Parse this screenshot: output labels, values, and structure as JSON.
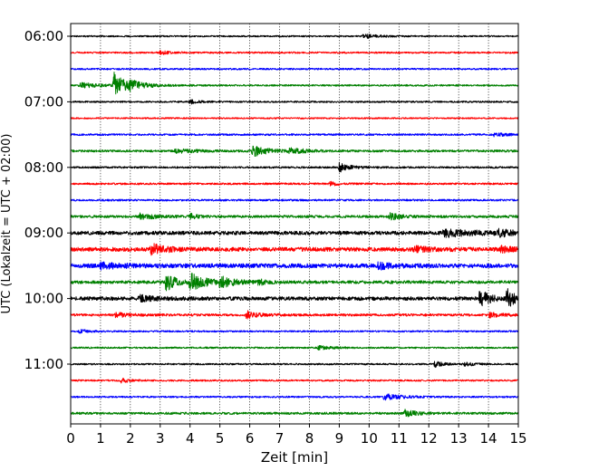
{
  "chart_data": {
    "type": "line",
    "xlabel": "Zeit  [min]",
    "ylabel": "UTC (Lokalzeit = UTC + 02:00)",
    "xlim": [
      0,
      15
    ],
    "xticks": [
      0,
      1,
      2,
      3,
      4,
      5,
      6,
      7,
      8,
      9,
      10,
      11,
      12,
      13,
      14,
      15
    ],
    "xtick_labels": [
      "0",
      "1",
      "2",
      "3",
      "4",
      "5",
      "6",
      "7",
      "8",
      "9",
      "10",
      "11",
      "12",
      "13",
      "14",
      "15"
    ],
    "ytick_labels": [
      "06:00",
      "07:00",
      "08:00",
      "09:00",
      "10:00",
      "11:00"
    ],
    "ytick_times": [
      "06:00",
      "07:00",
      "08:00",
      "09:00",
      "10:00",
      "11:00"
    ],
    "grid_x": true,
    "trace_interval_min": 15,
    "trace_colors": [
      "#000000",
      "#ff0000",
      "#0000ff",
      "#008000"
    ],
    "traces": [
      {
        "start": "06:00",
        "noise": 0.8,
        "events": [
          {
            "t": 9.8,
            "amp": 2.2,
            "dur": 0.5
          }
        ]
      },
      {
        "start": "06:15",
        "noise": 0.9,
        "events": [
          {
            "t": 3.0,
            "amp": 2.0,
            "dur": 0.3
          }
        ]
      },
      {
        "start": "06:30",
        "noise": 0.9,
        "events": []
      },
      {
        "start": "06:45",
        "noise": 0.9,
        "events": [
          {
            "t": 0.3,
            "amp": 3.0,
            "dur": 0.6
          },
          {
            "t": 1.45,
            "amp": 14.0,
            "dur": 0.35
          },
          {
            "t": 1.9,
            "amp": 4.0,
            "dur": 0.6
          }
        ]
      },
      {
        "start": "07:00",
        "noise": 0.9,
        "events": [
          {
            "t": 4.0,
            "amp": 2.0,
            "dur": 0.3
          }
        ]
      },
      {
        "start": "07:15",
        "noise": 0.8,
        "events": []
      },
      {
        "start": "07:30",
        "noise": 1.0,
        "events": [
          {
            "t": 14.2,
            "amp": 2.0,
            "dur": 0.4
          }
        ]
      },
      {
        "start": "07:45",
        "noise": 1.2,
        "events": [
          {
            "t": 3.5,
            "amp": 2.0,
            "dur": 0.6
          },
          {
            "t": 6.1,
            "amp": 6.0,
            "dur": 0.45
          },
          {
            "t": 7.3,
            "amp": 3.0,
            "dur": 0.5
          }
        ]
      },
      {
        "start": "08:00",
        "noise": 1.0,
        "events": [
          {
            "t": 9.0,
            "amp": 5.0,
            "dur": 0.35
          }
        ]
      },
      {
        "start": "08:15",
        "noise": 1.0,
        "events": [
          {
            "t": 8.7,
            "amp": 2.0,
            "dur": 0.3
          }
        ]
      },
      {
        "start": "08:30",
        "noise": 1.0,
        "events": []
      },
      {
        "start": "08:45",
        "noise": 1.4,
        "events": [
          {
            "t": 2.3,
            "amp": 3.0,
            "dur": 0.5
          },
          {
            "t": 4.0,
            "amp": 3.0,
            "dur": 0.2
          },
          {
            "t": 10.7,
            "amp": 3.5,
            "dur": 0.35
          }
        ]
      },
      {
        "start": "09:00",
        "noise": 2.0,
        "events": [
          {
            "t": 12.5,
            "amp": 3.5,
            "dur": 1.2
          },
          {
            "t": 14.3,
            "amp": 3.0,
            "dur": 0.5
          }
        ]
      },
      {
        "start": "09:15",
        "noise": 2.2,
        "events": [
          {
            "t": 2.7,
            "amp": 6.0,
            "dur": 0.4
          },
          {
            "t": 11.5,
            "amp": 3.0,
            "dur": 0.5
          },
          {
            "t": 14.4,
            "amp": 3.0,
            "dur": 0.4
          }
        ]
      },
      {
        "start": "09:30",
        "noise": 2.3,
        "events": [
          {
            "t": 1.0,
            "amp": 3.0,
            "dur": 0.6
          },
          {
            "t": 10.3,
            "amp": 3.5,
            "dur": 0.4
          }
        ]
      },
      {
        "start": "09:45",
        "noise": 1.6,
        "events": [
          {
            "t": 3.2,
            "amp": 10.0,
            "dur": 0.3
          },
          {
            "t": 4.0,
            "amp": 9.0,
            "dur": 0.5
          },
          {
            "t": 5.0,
            "amp": 5.0,
            "dur": 0.5
          },
          {
            "t": 6.3,
            "amp": 3.0,
            "dur": 0.2
          }
        ]
      },
      {
        "start": "10:00",
        "noise": 2.0,
        "events": [
          {
            "t": 2.3,
            "amp": 3.0,
            "dur": 0.5
          },
          {
            "t": 13.7,
            "amp": 10.0,
            "dur": 0.3
          },
          {
            "t": 14.6,
            "amp": 10.0,
            "dur": 0.3
          }
        ]
      },
      {
        "start": "10:15",
        "noise": 1.3,
        "events": [
          {
            "t": 1.5,
            "amp": 2.5,
            "dur": 0.4
          },
          {
            "t": 5.9,
            "amp": 4.0,
            "dur": 0.35
          },
          {
            "t": 14.0,
            "amp": 2.5,
            "dur": 0.4
          }
        ]
      },
      {
        "start": "10:30",
        "noise": 0.9,
        "events": [
          {
            "t": 0.3,
            "amp": 2.0,
            "dur": 0.3
          }
        ]
      },
      {
        "start": "10:45",
        "noise": 0.9,
        "events": [
          {
            "t": 8.3,
            "amp": 2.0,
            "dur": 0.4
          }
        ]
      },
      {
        "start": "11:00",
        "noise": 0.9,
        "events": [
          {
            "t": 12.2,
            "amp": 3.0,
            "dur": 0.3
          },
          {
            "t": 13.2,
            "amp": 2.0,
            "dur": 0.3
          }
        ]
      },
      {
        "start": "11:15",
        "noise": 0.9,
        "events": [
          {
            "t": 1.7,
            "amp": 2.5,
            "dur": 0.3
          }
        ]
      },
      {
        "start": "11:30",
        "noise": 0.9,
        "events": [
          {
            "t": 10.5,
            "amp": 3.0,
            "dur": 0.6
          }
        ]
      },
      {
        "start": "11:45",
        "noise": 1.2,
        "events": [
          {
            "t": 11.2,
            "amp": 3.5,
            "dur": 0.4
          }
        ]
      }
    ]
  }
}
